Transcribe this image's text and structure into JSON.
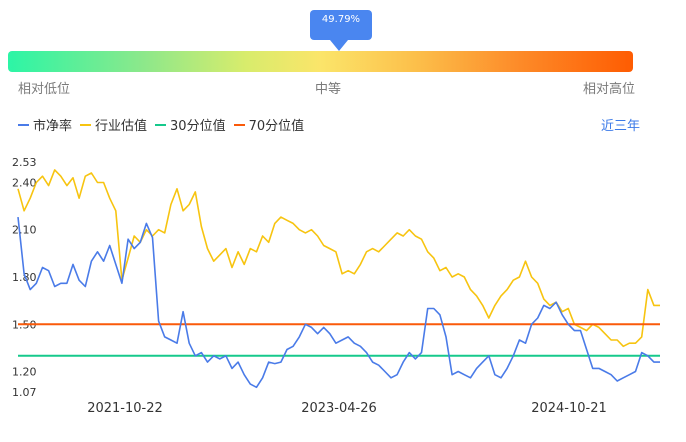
{
  "percentile": {
    "label": "49.79%",
    "value": 0.4979
  },
  "gauge": {
    "low": "相对低位",
    "mid": "中等",
    "high": "相对高位"
  },
  "legend": [
    {
      "name": "市净率",
      "color": "#4a7be8"
    },
    {
      "name": "行业估值",
      "color": "#f7c410"
    },
    {
      "name": "30分位值",
      "color": "#16c98c"
    },
    {
      "name": "70分位值",
      "color": "#fa5a0a"
    }
  ],
  "period_button": "近三年",
  "chart_data": {
    "type": "line",
    "y_ticks": [
      "2.53",
      "2.40",
      "2.10",
      "1.80",
      "1.50",
      "1.20",
      "1.07"
    ],
    "x_ticks": [
      "2021-10-22",
      "2023-04-26",
      "2024-10-21"
    ],
    "ylim": [
      1.07,
      2.53
    ],
    "grid": false,
    "legend_position": "top-left",
    "series": [
      {
        "name": "市净率",
        "color": "#4a7be8",
        "values": [
          2.18,
          1.82,
          1.72,
          1.76,
          1.86,
          1.84,
          1.74,
          1.76,
          1.76,
          1.88,
          1.78,
          1.74,
          1.9,
          1.96,
          1.9,
          2.0,
          1.88,
          1.76,
          2.04,
          1.98,
          2.02,
          2.14,
          2.05,
          1.52,
          1.42,
          1.4,
          1.38,
          1.58,
          1.38,
          1.3,
          1.32,
          1.26,
          1.3,
          1.28,
          1.3,
          1.22,
          1.26,
          1.18,
          1.12,
          1.1,
          1.16,
          1.26,
          1.25,
          1.26,
          1.34,
          1.36,
          1.42,
          1.5,
          1.48,
          1.44,
          1.48,
          1.44,
          1.38,
          1.4,
          1.42,
          1.38,
          1.36,
          1.32,
          1.26,
          1.24,
          1.2,
          1.16,
          1.18,
          1.26,
          1.32,
          1.28,
          1.32,
          1.6,
          1.6,
          1.56,
          1.42,
          1.18,
          1.2,
          1.18,
          1.16,
          1.22,
          1.26,
          1.3,
          1.18,
          1.16,
          1.22,
          1.3,
          1.4,
          1.38,
          1.5,
          1.54,
          1.62,
          1.6,
          1.64,
          1.56,
          1.5,
          1.46,
          1.46,
          1.34,
          1.22,
          1.22,
          1.2,
          1.18,
          1.14,
          1.16,
          1.18,
          1.2,
          1.32,
          1.3,
          1.26,
          1.26
        ]
      },
      {
        "name": "行业估值",
        "color": "#f7c410",
        "values": [
          2.36,
          2.22,
          2.3,
          2.4,
          2.44,
          2.38,
          2.48,
          2.44,
          2.38,
          2.43,
          2.3,
          2.44,
          2.46,
          2.4,
          2.4,
          2.3,
          2.22,
          1.78,
          1.92,
          2.06,
          2.02,
          2.1,
          2.06,
          2.1,
          2.08,
          2.26,
          2.36,
          2.22,
          2.26,
          2.34,
          2.12,
          1.98,
          1.9,
          1.94,
          1.98,
          1.86,
          1.96,
          1.88,
          1.98,
          1.96,
          2.06,
          2.02,
          2.14,
          2.18,
          2.16,
          2.14,
          2.1,
          2.08,
          2.1,
          2.06,
          2.0,
          1.98,
          1.96,
          1.82,
          1.84,
          1.82,
          1.88,
          1.96,
          1.98,
          1.96,
          2.0,
          2.04,
          2.08,
          2.06,
          2.1,
          2.06,
          2.04,
          1.96,
          1.92,
          1.84,
          1.86,
          1.8,
          1.82,
          1.8,
          1.72,
          1.68,
          1.62,
          1.54,
          1.62,
          1.68,
          1.72,
          1.78,
          1.8,
          1.9,
          1.8,
          1.76,
          1.66,
          1.62,
          1.64,
          1.58,
          1.6,
          1.5,
          1.48,
          1.46,
          1.5,
          1.48,
          1.44,
          1.4,
          1.4,
          1.36,
          1.38,
          1.38,
          1.42,
          1.72,
          1.62,
          1.62
        ]
      },
      {
        "name": "30分位值",
        "color": "#16c98c",
        "values": [
          1.3,
          1.3
        ]
      },
      {
        "name": "70分位值",
        "color": "#fa5a0a",
        "values": [
          1.5,
          1.5
        ]
      }
    ]
  }
}
